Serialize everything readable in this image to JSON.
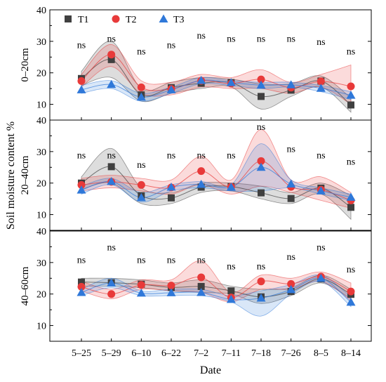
{
  "chart_data": {
    "type": "line",
    "ylabel": "Soil moisture content  %",
    "xlabel": "Date",
    "categories": [
      "5–25",
      "5–29",
      "6–10",
      "6–22",
      "7–2",
      "7–11",
      "7–18",
      "7–26",
      "8–5",
      "8–14"
    ],
    "ylim": [
      5,
      40
    ],
    "yticks": [
      10,
      20,
      30,
      40
    ],
    "legend": {
      "position": "top-left",
      "entries": [
        {
          "name": "T1",
          "marker": "square",
          "color": "#404040"
        },
        {
          "name": "T2",
          "marker": "circle",
          "color": "#e83a3a"
        },
        {
          "name": "T3",
          "marker": "triangle",
          "color": "#2f78d9"
        }
      ]
    },
    "panels": [
      {
        "label": "0–20cm",
        "ns": [
          "ns",
          "ns",
          "ns",
          "ns",
          "ns",
          "ns",
          "ns",
          "ns",
          "ns",
          "ns"
        ],
        "ns_y": [
          29,
          31,
          27,
          29,
          32,
          31,
          31,
          31,
          30,
          27
        ],
        "series": [
          {
            "name": "T1",
            "values": [
              18.2,
              24.2,
              13,
              15.3,
              16.7,
              16.9,
              12.5,
              14.5,
              17.4,
              9.8
            ],
            "band": [
              [
                16,
                20.5
              ],
              [
                18.5,
                30
              ],
              [
                11,
                15
              ],
              [
                13.5,
                17
              ],
              [
                15,
                18.5
              ],
              [
                15.5,
                18
              ],
              [
                8.5,
                16.5
              ],
              [
                12.5,
                16.5
              ],
              [
                15.5,
                19
              ],
              [
                7.5,
                12
              ]
            ]
          },
          {
            "name": "T2",
            "values": [
              17.4,
              25.8,
              15.4,
              14.9,
              17.5,
              16.6,
              17.9,
              15.3,
              17.3,
              15.7
            ],
            "band": [
              [
                15.5,
                19.5
              ],
              [
                22,
                29
              ],
              [
                13.5,
                17.5
              ],
              [
                13,
                17
              ],
              [
                15.5,
                19.5
              ],
              [
                15,
                18.5
              ],
              [
                15,
                21
              ],
              [
                13.5,
                17
              ],
              [
                15.5,
                19.5
              ],
              [
                10,
                22.5
              ]
            ]
          },
          {
            "name": "T3",
            "values": [
              14.6,
              16.3,
              12.3,
              14.6,
              17.6,
              16.9,
              16.1,
              16.2,
              15.1,
              12.9
            ],
            "band": [
              [
                13.5,
                16
              ],
              [
                15,
                17.5
              ],
              [
                11,
                13.5
              ],
              [
                13.5,
                15.5
              ],
              [
                16.5,
                18.5
              ],
              [
                16,
                17.5
              ],
              [
                15,
                17
              ],
              [
                15.5,
                17
              ],
              [
                14,
                16
              ],
              [
                11.5,
                14
              ]
            ]
          }
        ]
      },
      {
        "label": "20–40cm",
        "ns": [
          "ns",
          "ns",
          "ns",
          "ns",
          "ns",
          "ns",
          "ns",
          "ns",
          "ns",
          "ns"
        ],
        "ns_y": [
          29,
          29,
          26,
          29,
          29,
          29,
          38,
          31,
          29,
          27
        ],
        "series": [
          {
            "name": "T1",
            "values": [
              20,
              25.2,
              16,
              15.3,
              18.7,
              18.9,
              16.9,
              15.1,
              18.4,
              12.3
            ],
            "band": [
              [
                18,
                22
              ],
              [
                20,
                31
              ],
              [
                13.5,
                18.5
              ],
              [
                13.5,
                17
              ],
              [
                17,
                20
              ],
              [
                17.5,
                20
              ],
              [
                15,
                19
              ],
              [
                13.5,
                17
              ],
              [
                16.5,
                20
              ],
              [
                8.5,
                16
              ]
            ]
          },
          {
            "name": "T2",
            "values": [
              19.4,
              20.4,
              19.4,
              18.6,
              23.8,
              18.8,
              27,
              18.8,
              17.9,
              14.5
            ],
            "band": [
              [
                17.5,
                21.5
              ],
              [
                18.5,
                22.5
              ],
              [
                17.5,
                21.5
              ],
              [
                16.5,
                21
              ],
              [
                19.5,
                28.5
              ],
              [
                16.5,
                21
              ],
              [
                19,
                37
              ],
              [
                17,
                21
              ],
              [
                14.5,
                22
              ],
              [
                12,
                17
              ]
            ]
          },
          {
            "name": "T3",
            "values": [
              17.8,
              20.5,
              15.4,
              18.7,
              19.6,
              18.7,
              25,
              19.7,
              17.5,
              15.5
            ],
            "band": [
              [
                16.5,
                19
              ],
              [
                19.5,
                21.5
              ],
              [
                14,
                17
              ],
              [
                17.5,
                19.5
              ],
              [
                18.5,
                20.5
              ],
              [
                17.5,
                19.5
              ],
              [
                17.5,
                32.5
              ],
              [
                18.5,
                21
              ],
              [
                16.5,
                18.5
              ],
              [
                14.5,
                16.5
              ]
            ]
          }
        ]
      },
      {
        "label": "40–60cm",
        "ns": [
          "ns",
          "ns",
          "ns",
          "ns",
          "ns",
          "ns",
          "ns",
          "ns",
          "ns",
          "ns"
        ],
        "ns_y": [
          31,
          35,
          31,
          31,
          31,
          29,
          29,
          32,
          35,
          28
        ],
        "series": [
          {
            "name": "T1",
            "values": [
              23.8,
              23.6,
              23.1,
              22.1,
              22.4,
              21,
              19.1,
              20.8,
              24.8,
              19.9
            ],
            "band": [
              [
                22.5,
                25
              ],
              [
                22.5,
                25
              ],
              [
                22,
                24.5
              ],
              [
                21,
                23.5
              ],
              [
                20.5,
                24.5
              ],
              [
                20,
                22.5
              ],
              [
                17,
                21.5
              ],
              [
                19.5,
                22
              ],
              [
                23.5,
                26
              ],
              [
                18.5,
                21.5
              ]
            ]
          },
          {
            "name": "T2",
            "values": [
              22.3,
              20,
              22.9,
              22.7,
              25.3,
              18.9,
              24,
              23.2,
              25.5,
              20.8
            ],
            "band": [
              [
                21,
                24
              ],
              [
                18.5,
                21.5
              ],
              [
                21.5,
                24.5
              ],
              [
                21,
                24.5
              ],
              [
                20.5,
                30.5
              ],
              [
                17.5,
                20.5
              ],
              [
                21.5,
                26
              ],
              [
                21.5,
                25
              ],
              [
                24,
                27
              ],
              [
                18,
                23.5
              ]
            ]
          },
          {
            "name": "T3",
            "values": [
              20.5,
              23.5,
              20.3,
              20.4,
              20.5,
              18.3,
              18.7,
              21.4,
              25,
              17.4
            ],
            "band": [
              [
                19.5,
                21.5
              ],
              [
                22,
                25
              ],
              [
                19.5,
                21
              ],
              [
                19.5,
                21.5
              ],
              [
                19.5,
                21.5
              ],
              [
                17.5,
                19.5
              ],
              [
                13,
                21
              ],
              [
                20,
                23
              ],
              [
                24,
                26
              ],
              [
                16,
                19
              ]
            ]
          }
        ]
      }
    ]
  }
}
